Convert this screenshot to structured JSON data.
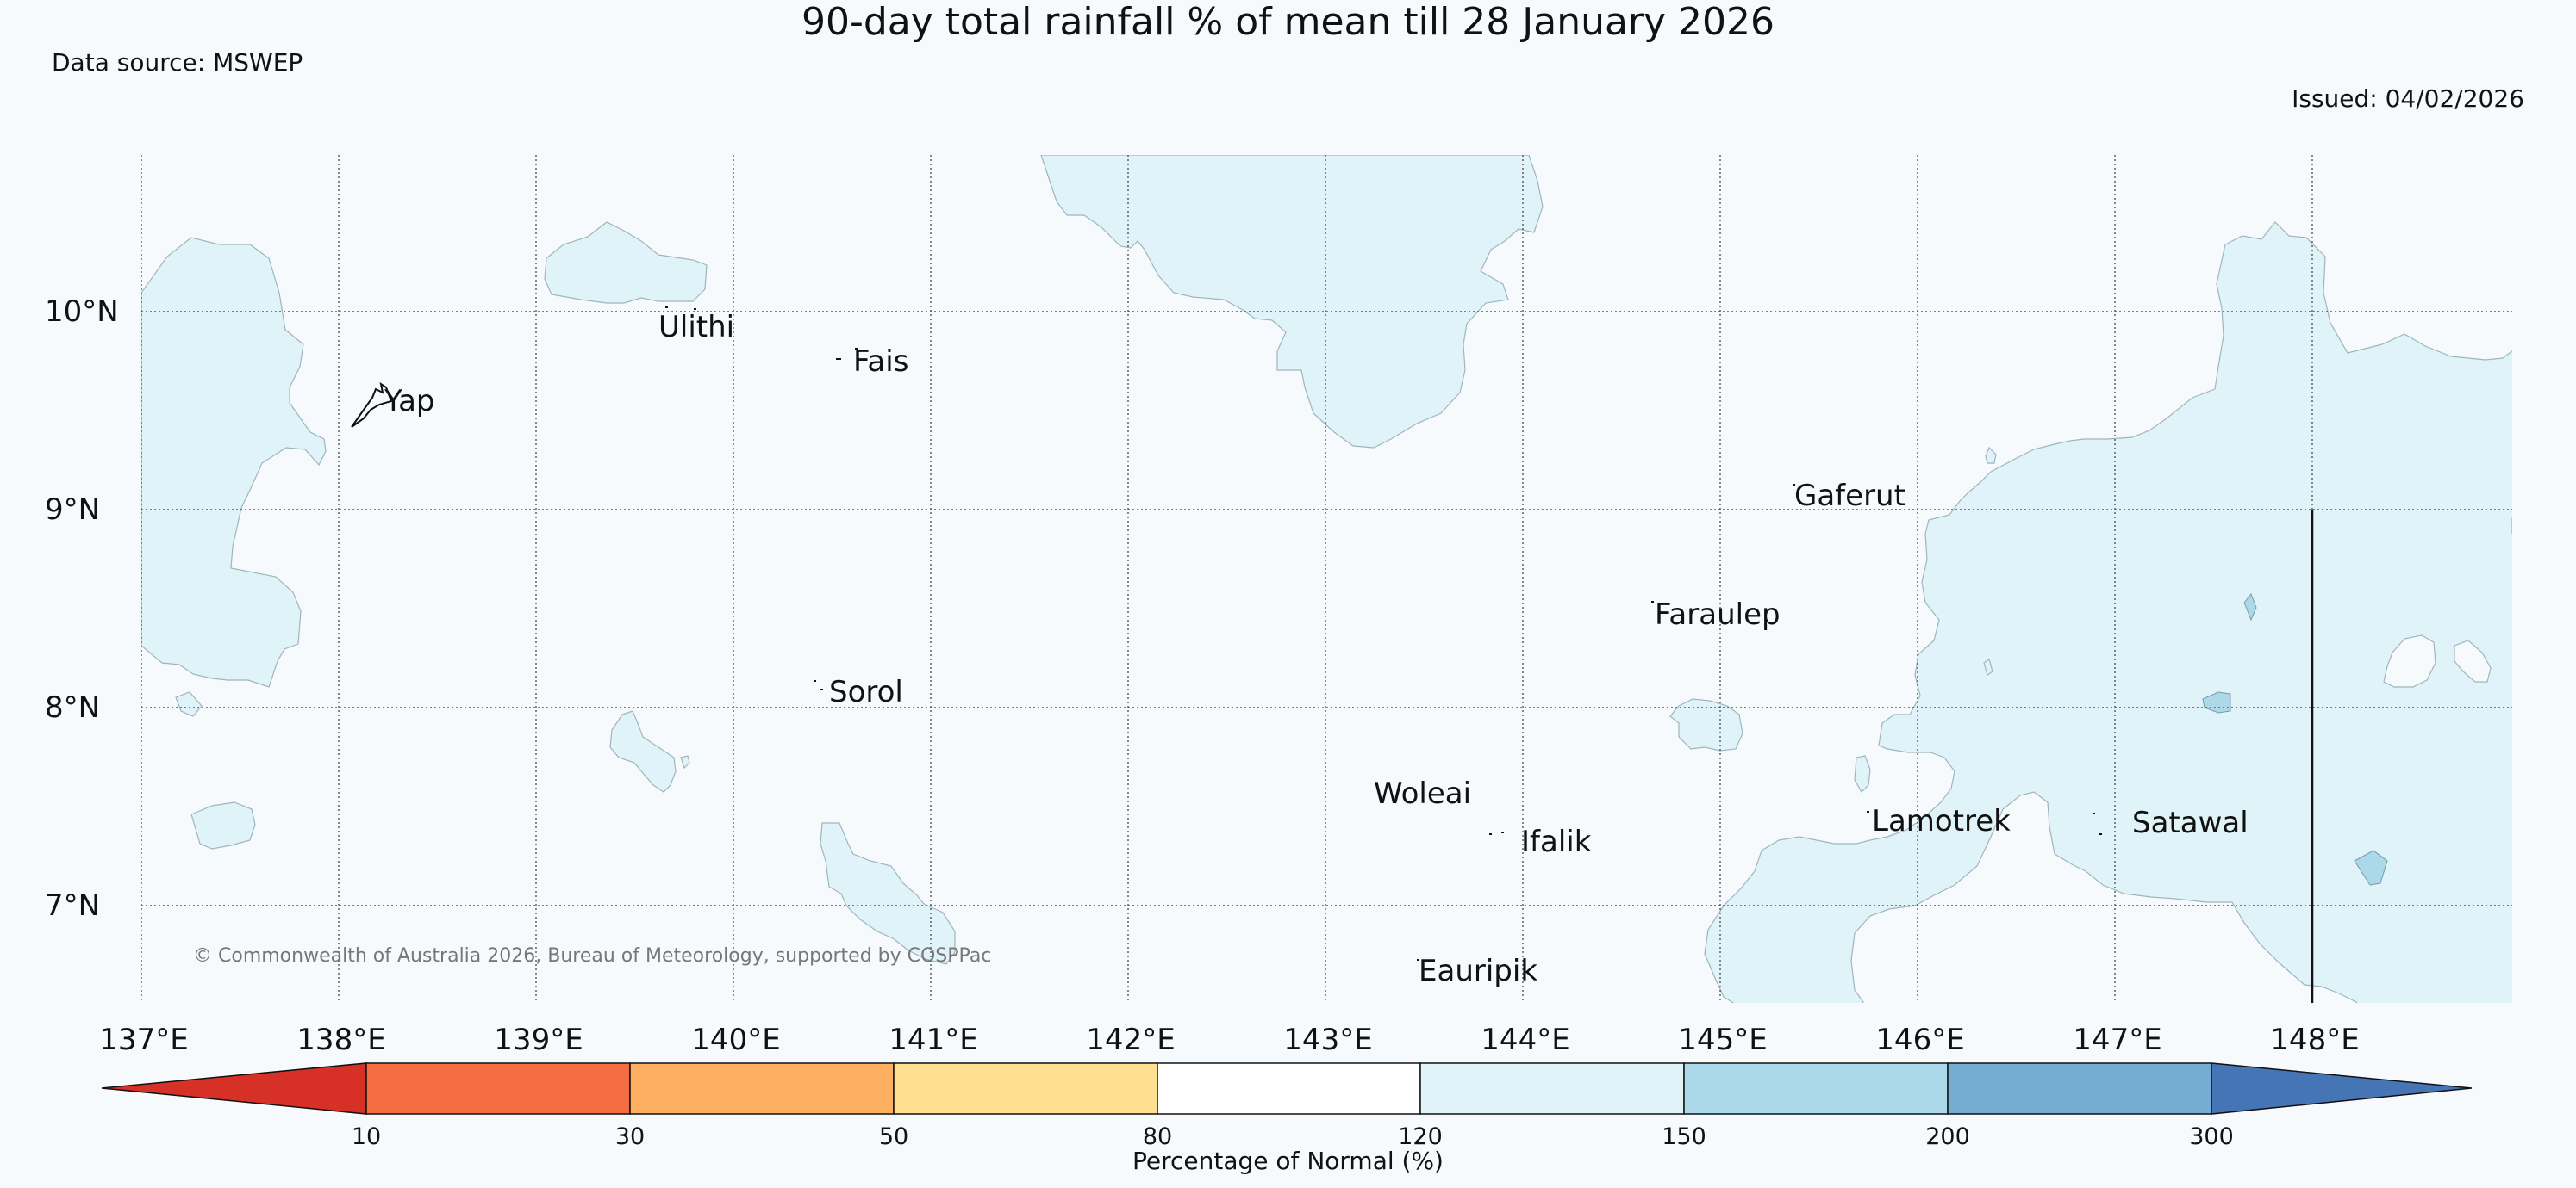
{
  "title": "90-day total rainfall % of mean till 28 January 2026",
  "data_source": "Data source: MSWEP",
  "issued": "Issued: 04/02/2026",
  "copyright": "© Commonwealth of Australia 2026, Bureau of Meteorology, supported by COSPPac",
  "map": {
    "lon_labels": [
      "137°E",
      "138°E",
      "139°E",
      "140°E",
      "141°E",
      "142°E",
      "143°E",
      "144°E",
      "145°E",
      "146°E",
      "147°E",
      "148°E"
    ],
    "lat_labels": [
      "10°N",
      "9°N",
      "8°N",
      "7°N"
    ],
    "places": [
      {
        "name": "Yap"
      },
      {
        "name": "Ulithi"
      },
      {
        "name": "Fais"
      },
      {
        "name": "Sorol"
      },
      {
        "name": "Gaferut"
      },
      {
        "name": "Faraulep"
      },
      {
        "name": "Woleai"
      },
      {
        "name": "Ifalik"
      },
      {
        "name": "Lamotrek"
      },
      {
        "name": "Satawal"
      },
      {
        "name": "Eauripik"
      }
    ]
  },
  "legend": {
    "title": "Percentage of Normal (%)",
    "ticks": [
      "10",
      "30",
      "50",
      "80",
      "120",
      "150",
      "200",
      "300"
    ],
    "colors": [
      "#d73027",
      "#f46d43",
      "#fdae61",
      "#fee090",
      "#ffffff",
      "#e0f3f8",
      "#abd9e9",
      "#74add1",
      "#4575b4"
    ]
  },
  "fill_colors": {
    "light_blue": "#e0f3f8",
    "mid_blue": "#abd9e9"
  }
}
